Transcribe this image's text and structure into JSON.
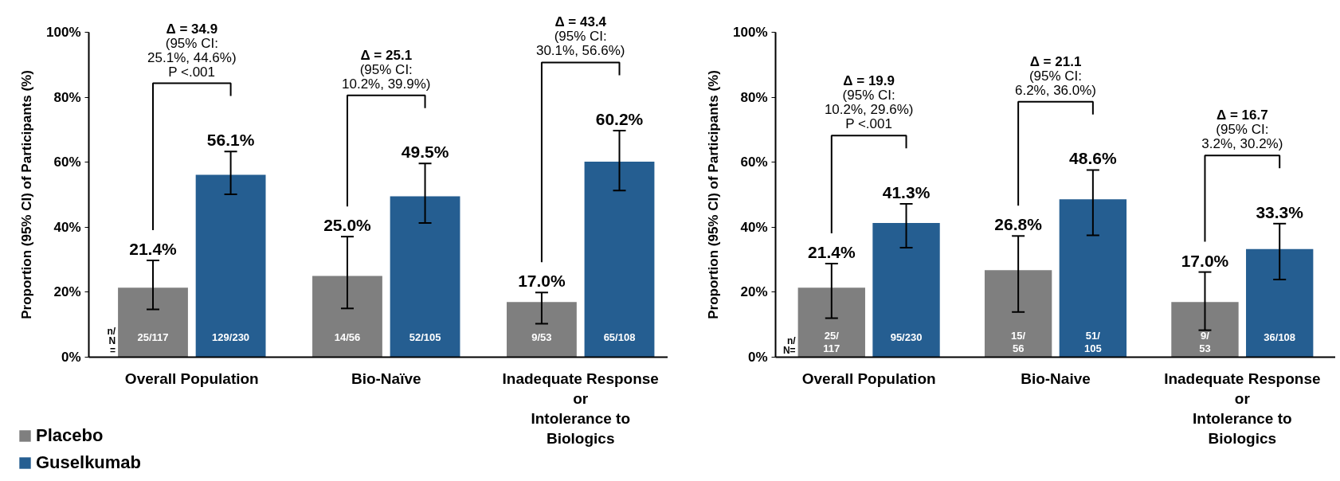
{
  "chart_data": [
    {
      "type": "bar",
      "ylabel": "Proportion (95% CI) of Participants (%)",
      "categories": [
        "Overall Population",
        "Bio-Naïve",
        "Inadequate Response\nor\nIntolerance to\nBiologics"
      ],
      "series": [
        {
          "name": "Placebo",
          "color": "#7f7f7f",
          "values": [
            21.4,
            25.0,
            17.0
          ],
          "errors": [
            [
              14.7,
              29.8
            ],
            [
              15.0,
              37.1
            ],
            [
              10.3,
              19.9
            ]
          ],
          "value_labels": [
            "21.4%",
            "25.0%",
            "17.0%"
          ]
        },
        {
          "name": "Guselkumab",
          "color": "#255e91",
          "values": [
            56.1,
            49.5,
            60.2
          ],
          "errors": [
            [
              50.1,
              63.3
            ],
            [
              41.3,
              59.6
            ],
            [
              51.3,
              69.7
            ]
          ],
          "value_labels": [
            "56.1%",
            "49.5%",
            "60.2%"
          ]
        }
      ],
      "ylim": [
        0,
        100
      ],
      "yticks": [
        {
          "value": 0,
          "label": "0%"
        },
        {
          "value": 20,
          "label": "20%"
        },
        {
          "value": 40,
          "label": "40%"
        },
        {
          "value": 60,
          "label": "60%"
        },
        {
          "value": 80,
          "label": "80%"
        },
        {
          "value": 100,
          "label": "100%"
        }
      ],
      "legend": "bottom left",
      "annotations": [
        "Δ = 34.9\n(95% CI:\n25.1%, 44.6%)\nP <.001",
        "Δ = 25.1\n(95% CI:\n10.2%, 39.9%)",
        "Δ = 43.4\n(95% CI:\n30.1%, 56.6%)",
        "n/\nN\n=",
        "25/117",
        "129/230",
        "14/56",
        "52/105",
        "9/53",
        "65/108"
      ]
    },
    {
      "type": "bar",
      "ylabel": "Proportion (95% CI) of Participants (%)",
      "categories": [
        "Overall Population",
        "Bio-Naive",
        "Inadequate Response\nor\nIntolerance to\nBiologics"
      ],
      "series": [
        {
          "color": "#7f7f7f",
          "values": [
            21.4,
            26.8,
            17.0
          ],
          "errors": [
            [
              12.0,
              28.8
            ],
            [
              13.9,
              37.3
            ],
            [
              8.3,
              26.2
            ]
          ],
          "value_labels": [
            "21.4%",
            "26.8%",
            "17.0%"
          ]
        },
        {
          "color": "#255e91",
          "values": [
            41.3,
            48.6,
            33.3
          ],
          "errors": [
            [
              33.7,
              47.2
            ],
            [
              37.5,
              57.6
            ],
            [
              23.9,
              41.1
            ]
          ],
          "value_labels": [
            "41.3%",
            "48.6%",
            "33.3%"
          ]
        }
      ],
      "ylim": [
        0,
        100
      ],
      "yticks": [
        {
          "value": 0,
          "label": "0%"
        },
        {
          "value": 20,
          "label": "20%"
        },
        {
          "value": 40,
          "label": "40%"
        },
        {
          "value": 60,
          "label": "60%"
        },
        {
          "value": 80,
          "label": "80%"
        },
        {
          "value": 100,
          "label": "100%"
        }
      ],
      "annotations": [
        "Δ = 19.9\n(95% CI:\n10.2%, 29.6%)\nP <.001",
        "Δ = 21.1\n(95% CI:\n6.2%, 36.0%)",
        "Δ = 16.7\n(95% CI:\n3.2%, 30.2%)",
        "n/\nN=",
        "25/\n117",
        "95/230",
        "15/\n56",
        "51/\n105",
        "9/\n53",
        "36/108"
      ]
    }
  ]
}
